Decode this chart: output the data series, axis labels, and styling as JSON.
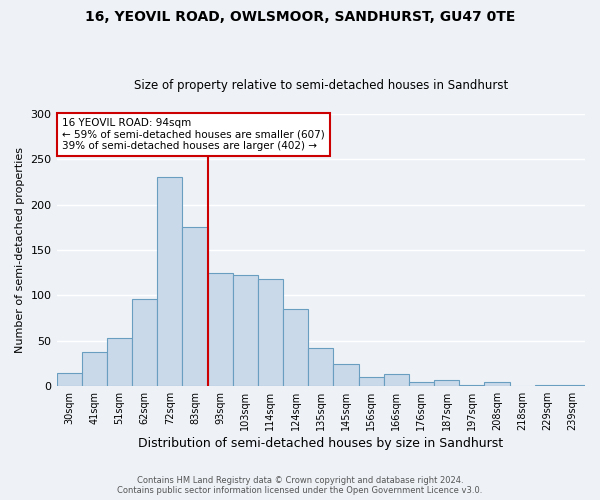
{
  "title": "16, YEOVIL ROAD, OWLSMOOR, SANDHURST, GU47 0TE",
  "subtitle": "Size of property relative to semi-detached houses in Sandhurst",
  "xlabel": "Distribution of semi-detached houses by size in Sandhurst",
  "ylabel": "Number of semi-detached properties",
  "bar_labels": [
    "30sqm",
    "41sqm",
    "51sqm",
    "62sqm",
    "72sqm",
    "83sqm",
    "93sqm",
    "103sqm",
    "114sqm",
    "124sqm",
    "135sqm",
    "145sqm",
    "156sqm",
    "166sqm",
    "176sqm",
    "187sqm",
    "197sqm",
    "208sqm",
    "218sqm",
    "229sqm",
    "239sqm"
  ],
  "bar_heights": [
    14,
    37,
    53,
    96,
    230,
    175,
    125,
    122,
    118,
    85,
    42,
    24,
    10,
    13,
    4,
    6,
    1,
    4,
    0,
    1,
    1
  ],
  "bar_color": "#c9d9ea",
  "bar_edge_color": "#6a9ec0",
  "vline_color": "#cc0000",
  "annotation_title": "16 YEOVIL ROAD: 94sqm",
  "annotation_line1": "← 59% of semi-detached houses are smaller (607)",
  "annotation_line2": "39% of semi-detached houses are larger (402) →",
  "annotation_box_facecolor": "#ffffff",
  "annotation_box_edgecolor": "#cc0000",
  "ylim": [
    0,
    300
  ],
  "yticks": [
    0,
    50,
    100,
    150,
    200,
    250,
    300
  ],
  "footer1": "Contains HM Land Registry data © Crown copyright and database right 2024.",
  "footer2": "Contains public sector information licensed under the Open Government Licence v3.0.",
  "bg_color": "#eef2f7",
  "grid_color": "#ffffff"
}
